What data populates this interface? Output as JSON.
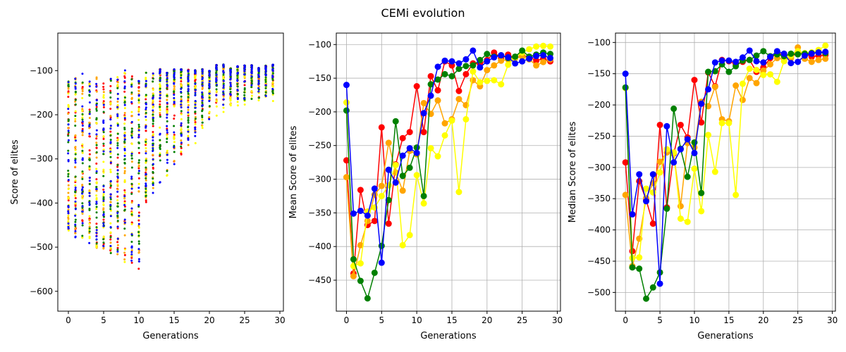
{
  "figure": {
    "suptitle": "CEMi evolution"
  },
  "colors": [
    "#ff0000",
    "#ffa500",
    "#ffff00",
    "#008000",
    "#0000ff"
  ],
  "chart_data": [
    {
      "type": "scatter",
      "xlabel": "Generations",
      "ylabel": "Score of elites",
      "xlim": [
        -1.5,
        30.5
      ],
      "ylim": [
        -645,
        -15
      ],
      "xticks": [
        0,
        5,
        10,
        15,
        20,
        25,
        30
      ],
      "yticks": [
        -600,
        -500,
        -400,
        -300,
        -200,
        -100
      ],
      "grid": false,
      "summary": [
        {
          "generation": 0,
          "min": -450,
          "max": -70
        },
        {
          "generation": 5,
          "min": -540,
          "max": -120
        },
        {
          "generation": 10,
          "min": -510,
          "max": -100
        },
        {
          "generation": 15,
          "min": -410,
          "max": -60
        },
        {
          "generation": 20,
          "min": -230,
          "max": -40
        },
        {
          "generation": 25,
          "min": -200,
          "max": -50
        },
        {
          "generation": 29,
          "min": -150,
          "max": -80
        }
      ]
    },
    {
      "type": "line",
      "xlabel": "Generations",
      "ylabel": "Mean Score of elites",
      "xlim": [
        -1.45,
        30.45
      ],
      "ylim": [
        -496,
        -83
      ],
      "xticks": [
        0,
        5,
        10,
        15,
        20,
        25,
        30
      ],
      "yticks": [
        -450,
        -400,
        -350,
        -300,
        -250,
        -200,
        -150,
        -100
      ],
      "grid": true,
      "x": [
        0,
        1,
        2,
        3,
        4,
        5,
        6,
        7,
        8,
        9,
        10,
        11,
        12,
        13,
        14,
        15,
        16,
        17,
        18,
        19,
        20,
        21,
        22,
        23,
        24,
        25,
        26,
        27,
        28,
        29
      ],
      "series": [
        {
          "color": "#ff0000",
          "values": [
            -272,
            -440,
            -316,
            -368,
            -362,
            -223,
            -366,
            -278,
            -239,
            -230,
            -162,
            -230,
            -147,
            -168,
            -125,
            -131,
            -169,
            -144,
            -128,
            -129,
            -123,
            -112,
            -120,
            -115,
            -120,
            -117,
            -118,
            -124,
            -121,
            -125
          ]
        },
        {
          "color": "#ffa500",
          "values": [
            -297,
            -444,
            -398,
            -362,
            -323,
            -310,
            -246,
            -290,
            -317,
            -258,
            -263,
            -187,
            -203,
            -183,
            -217,
            -211,
            -181,
            -190,
            -153,
            -162,
            -138,
            -131,
            -124,
            -122,
            -120,
            -118,
            -122,
            -131,
            -126,
            -122
          ]
        },
        {
          "color": "#ffff00",
          "values": [
            -186,
            -429,
            -425,
            -348,
            -342,
            -325,
            -309,
            -279,
            -398,
            -383,
            -294,
            -336,
            -254,
            -266,
            -235,
            -213,
            -319,
            -211,
            -140,
            -156,
            -154,
            -153,
            -159,
            -130,
            -119,
            -112,
            -107,
            -103,
            -102,
            -103
          ]
        },
        {
          "color": "#008000",
          "values": [
            -198,
            -419,
            -451,
            -477,
            -439,
            -399,
            -331,
            -214,
            -295,
            -283,
            -253,
            -325,
            -159,
            -152,
            -144,
            -147,
            -136,
            -132,
            -131,
            -123,
            -114,
            -118,
            -116,
            -120,
            -118,
            -109,
            -118,
            -115,
            -112,
            -114
          ]
        },
        {
          "color": "#0000ff",
          "values": [
            -160,
            -351,
            -347,
            -354,
            -314,
            -424,
            -286,
            -305,
            -265,
            -254,
            -261,
            -202,
            -176,
            -133,
            -124,
            -125,
            -128,
            -122,
            -109,
            -134,
            -125,
            -119,
            -116,
            -119,
            -128,
            -125,
            -121,
            -117,
            -116,
            -120
          ]
        }
      ]
    },
    {
      "type": "line",
      "xlabel": "Generations",
      "ylabel": "Median Score of elites",
      "xlim": [
        -1.45,
        30.45
      ],
      "ylim": [
        -530,
        -85
      ],
      "xticks": [
        0,
        5,
        10,
        15,
        20,
        25,
        30
      ],
      "yticks": [
        -500,
        -450,
        -400,
        -350,
        -300,
        -250,
        -200,
        -150,
        -100
      ],
      "grid": true,
      "x": [
        0,
        1,
        2,
        3,
        4,
        5,
        6,
        7,
        8,
        9,
        10,
        11,
        12,
        13,
        14,
        15,
        16,
        17,
        18,
        19,
        20,
        21,
        22,
        23,
        24,
        25,
        26,
        27,
        28,
        29
      ],
      "series": [
        {
          "color": "#ff0000",
          "values": [
            -292,
            -434,
            -322,
            -352,
            -390,
            -232,
            -364,
            -278,
            -232,
            -252,
            -160,
            -228,
            -148,
            -170,
            -128,
            -130,
            -135,
            -131,
            -128,
            -147,
            -140,
            -125,
            -118,
            -119,
            -122,
            -118,
            -118,
            -123,
            -121,
            -120
          ]
        },
        {
          "color": "#ffa500",
          "values": [
            -344,
            -458,
            -414,
            -349,
            -325,
            -291,
            -276,
            -278,
            -362,
            -261,
            -268,
            -195,
            -202,
            -171,
            -223,
            -226,
            -169,
            -192,
            -157,
            -165,
            -145,
            -135,
            -125,
            -127,
            -125,
            -108,
            -126,
            -131,
            -128,
            -126
          ]
        },
        {
          "color": "#ffff00",
          "values": [
            -173,
            -445,
            -444,
            -334,
            -340,
            -308,
            -271,
            -276,
            -382,
            -387,
            -302,
            -370,
            -248,
            -307,
            -229,
            -229,
            -344,
            -166,
            -142,
            -144,
            -152,
            -151,
            -163,
            -130,
            -121,
            -114,
            -117,
            -116,
            -112,
            -105
          ]
        },
        {
          "color": "#008000",
          "values": [
            -172,
            -460,
            -462,
            -510,
            -492,
            -468,
            -366,
            -206,
            -270,
            -315,
            -260,
            -341,
            -147,
            -146,
            -135,
            -147,
            -138,
            -129,
            -128,
            -121,
            -114,
            -122,
            -119,
            -122,
            -118,
            -119,
            -118,
            -117,
            -116,
            -117
          ]
        },
        {
          "color": "#0000ff",
          "values": [
            -150,
            -375,
            -311,
            -354,
            -311,
            -486,
            -234,
            -292,
            -271,
            -255,
            -277,
            -198,
            -175,
            -132,
            -129,
            -129,
            -131,
            -124,
            -113,
            -130,
            -132,
            -123,
            -114,
            -118,
            -133,
            -131,
            -121,
            -118,
            -116,
            -115
          ]
        }
      ]
    }
  ]
}
